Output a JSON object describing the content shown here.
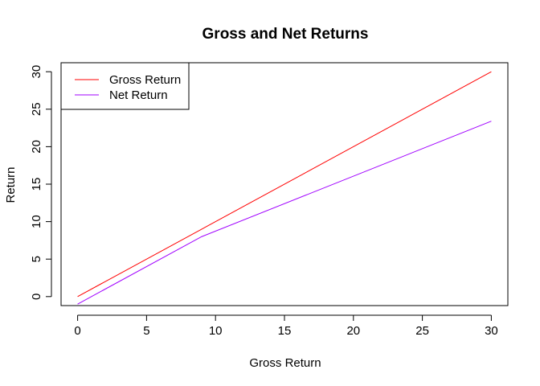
{
  "chart_data": {
    "type": "line",
    "title": "Gross and Net Returns",
    "xlabel": "Gross Return",
    "ylabel": "Return",
    "xlim": [
      -1.2,
      31.2
    ],
    "ylim": [
      -1.2,
      31.2
    ],
    "x_ticks": [
      0,
      5,
      10,
      15,
      20,
      25,
      30
    ],
    "y_ticks": [
      0,
      5,
      10,
      15,
      20,
      25,
      30
    ],
    "x_tick_labels": [
      "0",
      "5",
      "10",
      "15",
      "20",
      "25",
      "30"
    ],
    "y_tick_labels": [
      "0",
      "5",
      "10",
      "15",
      "20",
      "25",
      "30"
    ],
    "grid": false,
    "legend_position": "top-left",
    "series": [
      {
        "name": "Gross Return",
        "color": "#ff0000",
        "x": [
          0,
          30
        ],
        "y": [
          0,
          30
        ]
      },
      {
        "name": "Net Return",
        "color": "#a000ff",
        "x": [
          0,
          9,
          30
        ],
        "y": [
          -1,
          8,
          23.4
        ]
      }
    ]
  }
}
